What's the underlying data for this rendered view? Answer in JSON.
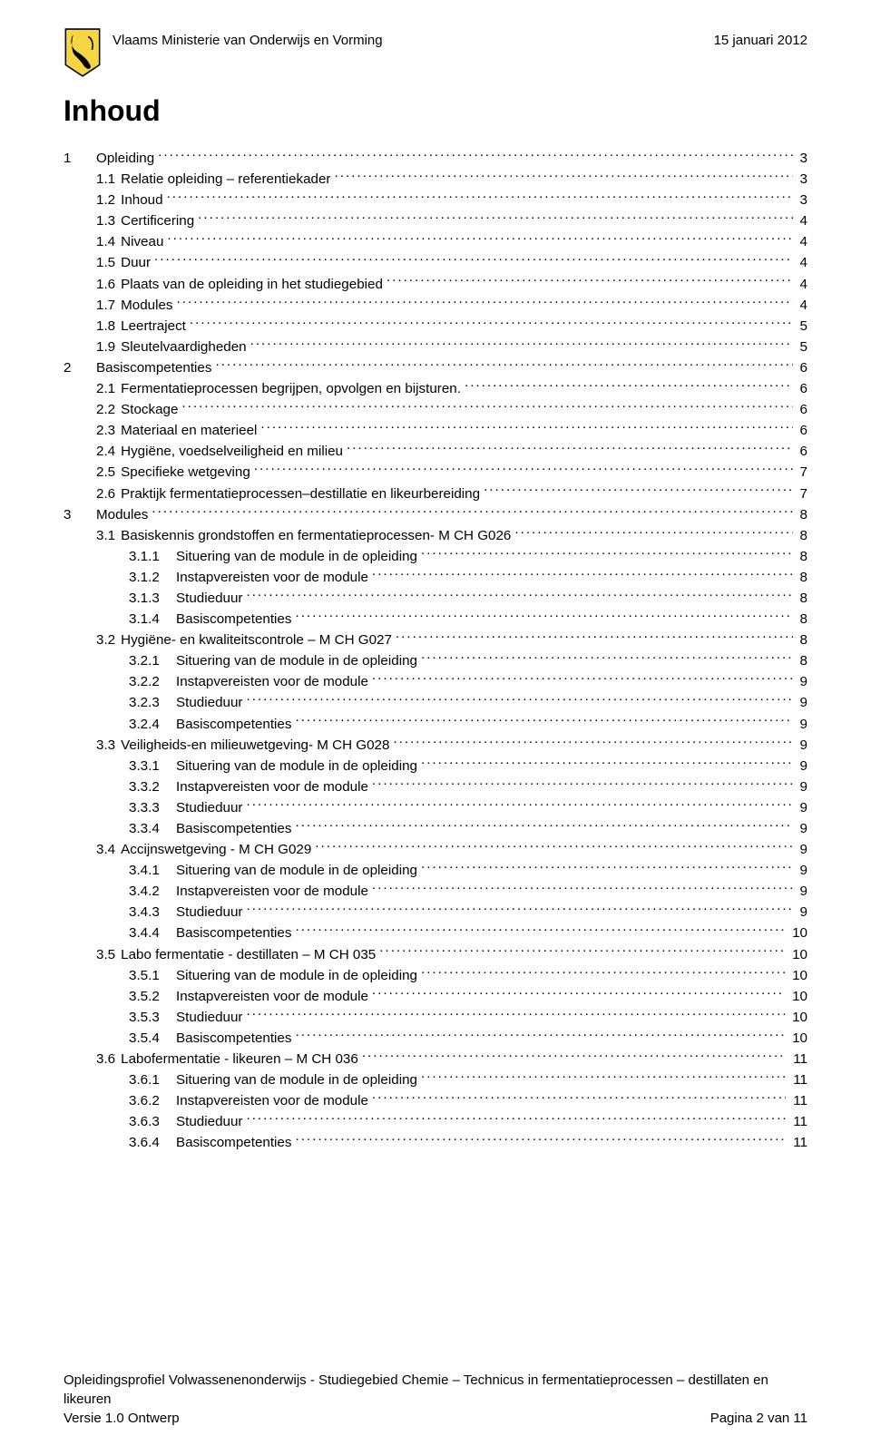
{
  "header": {
    "ministry": "Vlaams Ministerie van Onderwijs en Vorming",
    "date": "15 januari 2012"
  },
  "title": "Inhoud",
  "toc": [
    {
      "level": 1,
      "num": "1",
      "label": "Opleiding",
      "page": "3"
    },
    {
      "level": 2,
      "num": "1.1",
      "label": "Relatie opleiding – referentiekader",
      "page": "3"
    },
    {
      "level": 2,
      "num": "1.2",
      "label": "Inhoud",
      "page": "3"
    },
    {
      "level": 2,
      "num": "1.3",
      "label": "Certificering",
      "page": "4"
    },
    {
      "level": 2,
      "num": "1.4",
      "label": "Niveau",
      "page": "4"
    },
    {
      "level": 2,
      "num": "1.5",
      "label": "Duur",
      "page": "4"
    },
    {
      "level": 2,
      "num": "1.6",
      "label": "Plaats van de opleiding in het studiegebied",
      "page": "4"
    },
    {
      "level": 2,
      "num": "1.7",
      "label": "Modules",
      "page": "4"
    },
    {
      "level": 2,
      "num": "1.8",
      "label": "Leertraject",
      "page": "5"
    },
    {
      "level": 2,
      "num": "1.9",
      "label": "Sleutelvaardigheden",
      "page": "5"
    },
    {
      "level": 1,
      "num": "2",
      "label": "Basiscompetenties",
      "page": "6"
    },
    {
      "level": 2,
      "num": "2.1",
      "label": "Fermentatieprocessen begrijpen, opvolgen en bijsturen.",
      "page": "6"
    },
    {
      "level": 2,
      "num": "2.2",
      "label": "Stockage",
      "page": "6"
    },
    {
      "level": 2,
      "num": "2.3",
      "label": "Materiaal en materieel",
      "page": "6"
    },
    {
      "level": 2,
      "num": "2.4",
      "label": "Hygiëne, voedselveiligheid en milieu",
      "page": "6"
    },
    {
      "level": 2,
      "num": "2.5",
      "label": "Specifieke wetgeving",
      "page": "7"
    },
    {
      "level": 2,
      "num": "2.6",
      "label": "Praktijk fermentatieprocessen–destillatie en likeurbereiding",
      "page": "7"
    },
    {
      "level": 1,
      "num": "3",
      "label": "Modules",
      "page": "8"
    },
    {
      "level": 2,
      "num": "3.1",
      "label": "Basiskennis grondstoffen en fermentatieprocessen- M CH G026",
      "page": "8"
    },
    {
      "level": 3,
      "num": "3.1.1",
      "label": "Situering van de module in de opleiding",
      "page": "8"
    },
    {
      "level": 3,
      "num": "3.1.2",
      "label": "Instapvereisten voor de module",
      "page": "8"
    },
    {
      "level": 3,
      "num": "3.1.3",
      "label": "Studieduur",
      "page": "8"
    },
    {
      "level": 3,
      "num": "3.1.4",
      "label": "Basiscompetenties",
      "page": "8"
    },
    {
      "level": 2,
      "num": "3.2",
      "label": "Hygiëne- en kwaliteitscontrole – M CH G027",
      "page": "8"
    },
    {
      "level": 3,
      "num": "3.2.1",
      "label": "Situering van de module in de opleiding",
      "page": "8"
    },
    {
      "level": 3,
      "num": "3.2.2",
      "label": "Instapvereisten voor de module",
      "page": "9"
    },
    {
      "level": 3,
      "num": "3.2.3",
      "label": "Studieduur",
      "page": "9"
    },
    {
      "level": 3,
      "num": "3.2.4",
      "label": "Basiscompetenties",
      "page": "9"
    },
    {
      "level": 2,
      "num": "3.3",
      "label": "Veiligheids-en milieuwetgeving- M CH G028",
      "page": "9"
    },
    {
      "level": 3,
      "num": "3.3.1",
      "label": "Situering van de module in de opleiding",
      "page": "9"
    },
    {
      "level": 3,
      "num": "3.3.2",
      "label": "Instapvereisten voor de module",
      "page": "9"
    },
    {
      "level": 3,
      "num": "3.3.3",
      "label": "Studieduur",
      "page": "9"
    },
    {
      "level": 3,
      "num": "3.3.4",
      "label": "Basiscompetenties",
      "page": "9"
    },
    {
      "level": 2,
      "num": "3.4",
      "label": "Accijnswetgeving - M CH G029",
      "page": "9"
    },
    {
      "level": 3,
      "num": "3.4.1",
      "label": "Situering van de module in de opleiding",
      "page": "9"
    },
    {
      "level": 3,
      "num": "3.4.2",
      "label": "Instapvereisten voor de module",
      "page": "9"
    },
    {
      "level": 3,
      "num": "3.4.3",
      "label": "Studieduur",
      "page": "9"
    },
    {
      "level": 3,
      "num": "3.4.4",
      "label": "Basiscompetenties",
      "page": "10"
    },
    {
      "level": 2,
      "num": "3.5",
      "label": "Labo fermentatie - destillaten – M CH 035",
      "page": "10"
    },
    {
      "level": 3,
      "num": "3.5.1",
      "label": "Situering van de module in de opleiding",
      "page": "10"
    },
    {
      "level": 3,
      "num": "3.5.2",
      "label": "Instapvereisten voor de module",
      "page": "10"
    },
    {
      "level": 3,
      "num": "3.5.3",
      "label": "Studieduur",
      "page": "10"
    },
    {
      "level": 3,
      "num": "3.5.4",
      "label": "Basiscompetenties",
      "page": "10"
    },
    {
      "level": 2,
      "num": "3.6",
      "label": "Labofermentatie - likeuren – M CH 036",
      "page": "11"
    },
    {
      "level": 3,
      "num": "3.6.1",
      "label": "Situering van de module in de opleiding",
      "page": "11"
    },
    {
      "level": 3,
      "num": "3.6.2",
      "label": "Instapvereisten voor de module",
      "page": "11"
    },
    {
      "level": 3,
      "num": "3.6.3",
      "label": "Studieduur",
      "page": "11"
    },
    {
      "level": 3,
      "num": "3.6.4",
      "label": "Basiscompetenties",
      "page": "11"
    }
  ],
  "footer": {
    "line1": "Opleidingsprofiel Volwassenenonderwijs - Studiegebied Chemie – Technicus in fermentatieprocessen – destillaten en likeuren",
    "version": "Versie 1.0 Ontwerp",
    "pagenum": "Pagina 2 van 11"
  },
  "colors": {
    "text": "#000000",
    "background": "#ffffff",
    "logo_yellow": "#f5d542",
    "logo_outline": "#000000"
  }
}
